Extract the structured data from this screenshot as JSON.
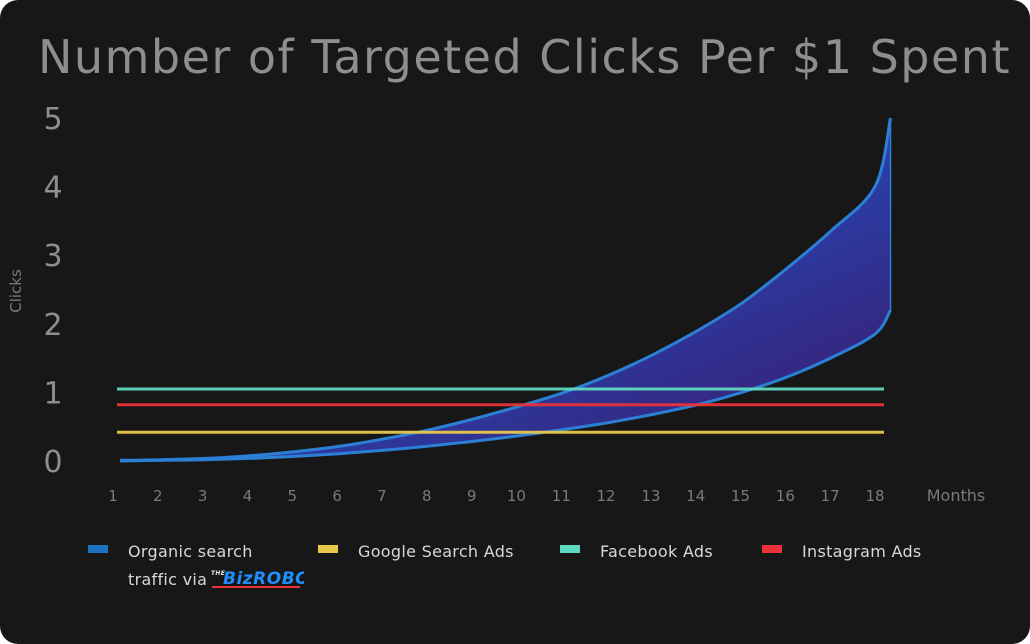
{
  "chart_data": {
    "type": "area",
    "title": "Number of Targeted Clicks Per $1 Spent",
    "xlabel": "Months",
    "ylabel": "Clicks",
    "x": [
      1,
      2,
      3,
      4,
      5,
      6,
      7,
      8,
      9,
      10,
      11,
      12,
      13,
      14,
      15,
      16,
      17,
      18
    ],
    "xlim": [
      1,
      18.35
    ],
    "ylim": [
      0,
      5
    ],
    "yticks": [
      0,
      1,
      2,
      3,
      4,
      5
    ],
    "grid": false,
    "legend_position": "bottom",
    "series": [
      {
        "name": "Organic search traffic via The BizRobot",
        "kind": "band",
        "upper": [
          0.01,
          0.02,
          0.04,
          0.08,
          0.14,
          0.22,
          0.33,
          0.46,
          0.62,
          0.8,
          1.0,
          1.25,
          1.55,
          1.9,
          2.3,
          2.8,
          3.35,
          4.0
        ],
        "lower": [
          0.0,
          0.01,
          0.02,
          0.04,
          0.07,
          0.11,
          0.16,
          0.22,
          0.29,
          0.37,
          0.46,
          0.56,
          0.68,
          0.82,
          1.0,
          1.22,
          1.5,
          1.85
        ],
        "upper_end": 5.0,
        "lower_end": 2.2,
        "color": "#1e73be",
        "fill_end_color": "#3a1a66"
      },
      {
        "name": "Google Search Ads",
        "kind": "line",
        "value": 0.42,
        "color": "#e8c84a"
      },
      {
        "name": "Facebook Ads",
        "kind": "line",
        "value": 1.05,
        "color": "#5fd8c0"
      },
      {
        "name": "Instagram Ads",
        "kind": "line",
        "value": 0.82,
        "color": "#e8333a"
      }
    ]
  },
  "legend": {
    "organic_line1": "Organic search",
    "organic_line2": "traffic via",
    "google": "Google Search Ads",
    "facebook": "Facebook Ads",
    "instagram": "Instagram Ads",
    "logo": {
      "the": "THE",
      "wordmark": "BizROBOT"
    }
  }
}
